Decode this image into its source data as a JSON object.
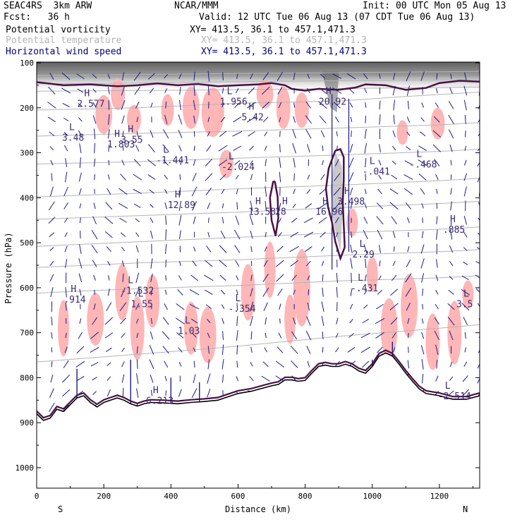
{
  "header": {
    "project": "SEAC4RS  3km ARW",
    "org": "NCAR/MMM",
    "init": "Init: 00 UTC Mon 05 Aug 13",
    "fcst": "Fcst:   36 h",
    "valid": "Valid: 12 UTC Tue 06 Aug 13 (07 CDT Tue 06 Aug 13)",
    "fields": [
      {
        "label": "Potential vorticity",
        "xy": "XY= 413.5, 36.1 to 457.1,471.3",
        "color": "#000000"
      },
      {
        "label": "Potential temperature",
        "xy": "XY= 413.5, 36.1 to 457.1,471.3",
        "color": "#b4b4b4"
      },
      {
        "label": "Horizontal wind speed",
        "xy": "XY= 413.5, 36.1 to 457.1,471.3",
        "color": "#000080"
      }
    ]
  },
  "colors": {
    "pv_shading": "#555555",
    "pink_shading": "#ffb6b6",
    "theta": "#b4b4b4",
    "vector": "#1a1a8c",
    "contour": "#4a1046",
    "terrain": "#000000",
    "hl_text": "#3a2a70"
  },
  "chart_data": {
    "type": "cross-section",
    "xlabel": "Distance (km)",
    "ylabel": "Pressure (hPa)",
    "xlim": [
      0,
      1320
    ],
    "ylim": [
      1050,
      100
    ],
    "x_ticks": [
      0,
      200,
      400,
      600,
      800,
      1000,
      1200
    ],
    "y_ticks": [
      100,
      200,
      300,
      400,
      500,
      600,
      700,
      800,
      900,
      1000
    ],
    "left_end_label": "S",
    "right_end_label": "N",
    "theta_lines": [
      [
        [
          0,
          128
        ],
        [
          300,
          126
        ],
        [
          600,
          124
        ],
        [
          900,
          122
        ],
        [
          1200,
          120
        ],
        [
          1320,
          119
        ]
      ],
      [
        [
          0,
          147
        ],
        [
          300,
          145
        ],
        [
          600,
          142
        ],
        [
          900,
          140
        ],
        [
          1200,
          138
        ],
        [
          1320,
          137
        ]
      ],
      [
        [
          0,
          163
        ],
        [
          250,
          162
        ],
        [
          600,
          160
        ],
        [
          900,
          157
        ],
        [
          1200,
          155
        ],
        [
          1320,
          154
        ]
      ],
      [
        [
          0,
          205
        ],
        [
          300,
          200
        ],
        [
          600,
          190
        ],
        [
          900,
          185
        ],
        [
          1100,
          175
        ],
        [
          1320,
          165
        ]
      ],
      [
        [
          0,
          263
        ],
        [
          300,
          257
        ],
        [
          600,
          252
        ],
        [
          900,
          245
        ],
        [
          1200,
          238
        ],
        [
          1320,
          233
        ]
      ],
      [
        [
          0,
          325
        ],
        [
          300,
          320
        ],
        [
          600,
          312
        ],
        [
          900,
          305
        ],
        [
          1200,
          297
        ],
        [
          1320,
          292
        ]
      ],
      [
        [
          0,
          398
        ],
        [
          300,
          390
        ],
        [
          600,
          380
        ],
        [
          900,
          372
        ],
        [
          1200,
          362
        ],
        [
          1320,
          357
        ]
      ],
      [
        [
          0,
          448
        ],
        [
          300,
          440
        ],
        [
          600,
          432
        ],
        [
          900,
          422
        ],
        [
          1200,
          413
        ],
        [
          1320,
          408
        ]
      ],
      [
        [
          0,
          508
        ],
        [
          300,
          498
        ],
        [
          600,
          488
        ],
        [
          900,
          478
        ],
        [
          1200,
          470
        ],
        [
          1320,
          465
        ]
      ],
      [
        [
          0,
          555
        ],
        [
          300,
          545
        ],
        [
          600,
          538
        ],
        [
          900,
          528
        ],
        [
          1200,
          520
        ],
        [
          1320,
          515
        ]
      ],
      [
        [
          0,
          612
        ],
        [
          300,
          602
        ],
        [
          600,
          595
        ],
        [
          900,
          585
        ],
        [
          1200,
          578
        ],
        [
          1320,
          573
        ]
      ],
      [
        [
          0,
          765
        ],
        [
          300,
          748
        ],
        [
          600,
          730
        ],
        [
          900,
          708
        ],
        [
          1200,
          690
        ],
        [
          1320,
          682
        ]
      ]
    ],
    "terrain": [
      [
        0,
        880
      ],
      [
        20,
        895
      ],
      [
        40,
        890
      ],
      [
        60,
        870
      ],
      [
        80,
        875
      ],
      [
        100,
        860
      ],
      [
        120,
        845
      ],
      [
        140,
        840
      ],
      [
        160,
        855
      ],
      [
        180,
        865
      ],
      [
        200,
        855
      ],
      [
        220,
        850
      ],
      [
        240,
        845
      ],
      [
        260,
        850
      ],
      [
        280,
        858
      ],
      [
        300,
        863
      ],
      [
        320,
        858
      ],
      [
        340,
        855
      ],
      [
        380,
        856
      ],
      [
        420,
        858
      ],
      [
        460,
        855
      ],
      [
        500,
        853
      ],
      [
        540,
        850
      ],
      [
        560,
        845
      ],
      [
        600,
        835
      ],
      [
        640,
        830
      ],
      [
        660,
        826
      ],
      [
        680,
        822
      ],
      [
        700,
        818
      ],
      [
        720,
        815
      ],
      [
        740,
        805
      ],
      [
        760,
        805
      ],
      [
        780,
        808
      ],
      [
        800,
        806
      ],
      [
        820,
        790
      ],
      [
        840,
        775
      ],
      [
        860,
        772
      ],
      [
        880,
        775
      ],
      [
        900,
        775
      ],
      [
        920,
        770
      ],
      [
        940,
        775
      ],
      [
        960,
        785
      ],
      [
        980,
        790
      ],
      [
        1000,
        775
      ],
      [
        1020,
        752
      ],
      [
        1040,
        745
      ],
      [
        1060,
        752
      ],
      [
        1080,
        770
      ],
      [
        1100,
        790
      ],
      [
        1120,
        808
      ],
      [
        1140,
        825
      ],
      [
        1160,
        835
      ],
      [
        1200,
        840
      ],
      [
        1240,
        848
      ],
      [
        1280,
        848
      ],
      [
        1320,
        840
      ]
    ],
    "pv_contours": [
      [
        [
          0,
          143
        ],
        [
          80,
          150
        ],
        [
          160,
          148
        ],
        [
          240,
          152
        ],
        [
          300,
          150
        ],
        [
          360,
          146
        ],
        [
          420,
          150
        ],
        [
          480,
          147
        ],
        [
          540,
          152
        ],
        [
          600,
          150
        ],
        [
          660,
          148
        ],
        [
          700,
          145
        ],
        [
          740,
          150
        ],
        [
          760,
          158
        ],
        [
          800,
          162
        ],
        [
          840,
          158
        ],
        [
          900,
          160
        ],
        [
          950,
          155
        ],
        [
          980,
          148
        ],
        [
          1040,
          150
        ],
        [
          1100,
          160
        ],
        [
          1160,
          156
        ],
        [
          1200,
          145
        ],
        [
          1260,
          140
        ],
        [
          1320,
          142
        ]
      ],
      [
        [
          890,
          295
        ],
        [
          870,
          335
        ],
        [
          862,
          380
        ],
        [
          868,
          420
        ],
        [
          880,
          455
        ],
        [
          890,
          498
        ],
        [
          905,
          535
        ],
        [
          918,
          510
        ],
        [
          915,
          460
        ],
        [
          912,
          410
        ],
        [
          915,
          360
        ],
        [
          915,
          310
        ],
        [
          905,
          292
        ],
        [
          890,
          295
        ]
      ],
      [
        [
          705,
          363
        ],
        [
          695,
          400
        ],
        [
          700,
          450
        ],
        [
          712,
          485
        ],
        [
          720,
          445
        ],
        [
          718,
          398
        ],
        [
          710,
          365
        ],
        [
          705,
          363
        ]
      ]
    ],
    "pink_regions": [
      {
        "x": 200,
        "p": 215,
        "w": 12,
        "h": 55
      },
      {
        "x": 242,
        "p": 170,
        "w": 10,
        "h": 45
      },
      {
        "x": 290,
        "p": 225,
        "w": 10,
        "h": 40
      },
      {
        "x": 390,
        "p": 205,
        "w": 9,
        "h": 45
      },
      {
        "x": 460,
        "p": 200,
        "w": 12,
        "h": 60
      },
      {
        "x": 525,
        "p": 210,
        "w": 16,
        "h": 70
      },
      {
        "x": 680,
        "p": 170,
        "w": 12,
        "h": 40
      },
      {
        "x": 735,
        "p": 200,
        "w": 10,
        "h": 60
      },
      {
        "x": 790,
        "p": 205,
        "w": 10,
        "h": 50
      },
      {
        "x": 1195,
        "p": 235,
        "w": 10,
        "h": 45
      },
      {
        "x": 1090,
        "p": 255,
        "w": 8,
        "h": 35
      },
      {
        "x": 565,
        "p": 325,
        "w": 10,
        "h": 40
      },
      {
        "x": 790,
        "p": 600,
        "w": 12,
        "h": 110
      },
      {
        "x": 630,
        "p": 610,
        "w": 10,
        "h": 80
      },
      {
        "x": 460,
        "p": 690,
        "w": 10,
        "h": 75
      },
      {
        "x": 510,
        "p": 705,
        "w": 12,
        "h": 80
      },
      {
        "x": 300,
        "p": 690,
        "w": 10,
        "h": 90
      },
      {
        "x": 255,
        "p": 610,
        "w": 10,
        "h": 80
      },
      {
        "x": 175,
        "p": 670,
        "w": 12,
        "h": 75
      },
      {
        "x": 80,
        "p": 690,
        "w": 8,
        "h": 80
      },
      {
        "x": 345,
        "p": 630,
        "w": 10,
        "h": 75
      },
      {
        "x": 695,
        "p": 560,
        "w": 8,
        "h": 80
      },
      {
        "x": 755,
        "p": 670,
        "w": 8,
        "h": 70
      },
      {
        "x": 1050,
        "p": 690,
        "w": 12,
        "h": 85
      },
      {
        "x": 1110,
        "p": 640,
        "w": 12,
        "h": 90
      },
      {
        "x": 1245,
        "p": 700,
        "w": 10,
        "h": 90
      },
      {
        "x": 1180,
        "p": 720,
        "w": 10,
        "h": 80
      },
      {
        "x": 1000,
        "p": 570,
        "w": 8,
        "h": 50
      },
      {
        "x": 940,
        "p": 455,
        "w": 8,
        "h": 40
      },
      {
        "x": 1285,
        "p": 615,
        "w": 8,
        "h": 40
      }
    ],
    "hl_labels": [
      {
        "letter": "H",
        "value": "2.577",
        "x": 150,
        "p": 195
      },
      {
        "letter": "L",
        "value": "3.48",
        "x": 105,
        "p": 270
      },
      {
        "letter": "H",
        "value": "1.803",
        "x": 240,
        "p": 285
      },
      {
        "letter": "H",
        "value": "3.55",
        "x": 280,
        "p": 275
      },
      {
        "letter": "L",
        "value": "-1.441",
        "x": 385,
        "p": 320
      },
      {
        "letter": "L",
        "value": "1.956",
        "x": 575,
        "p": 190
      },
      {
        "letter": "H",
        "value": "5.42",
        "x": 640,
        "p": 225
      },
      {
        "letter": "L",
        "value": "-2.024",
        "x": 580,
        "p": 335
      },
      {
        "letter": "H",
        "value": "12.89",
        "x": 420,
        "p": 420
      },
      {
        "letter": "H",
        "value": "13.58",
        "x": 660,
        "p": 435
      },
      {
        "letter": "H",
        "value": "28",
        "x": 740,
        "p": 435
      },
      {
        "letter": "H",
        "value": "16.96",
        "x": 860,
        "p": 435
      },
      {
        "letter": "H",
        "value": "3.498",
        "x": 925,
        "p": 412
      },
      {
        "letter": "L",
        "value": "-.041",
        "x": 1000,
        "p": 345
      },
      {
        "letter": "L",
        "value": "-.468",
        "x": 1140,
        "p": 330
      },
      {
        "letter": "H",
        "value": "20.92",
        "x": 870,
        "p": 190
      },
      {
        "letter": "L",
        "value": "2.29",
        "x": 970,
        "p": 530
      },
      {
        "letter": "L",
        "value": "-.431",
        "x": 965,
        "p": 605
      },
      {
        "letter": "H",
        "value": ".885",
        "x": 1240,
        "p": 475
      },
      {
        "letter": "H",
        "value": ".914",
        "x": 110,
        "p": 630
      },
      {
        "letter": "L",
        "value": "-1.532",
        "x": 280,
        "p": 610
      },
      {
        "letter": "L",
        "value": "1.55",
        "x": 310,
        "p": 640
      },
      {
        "letter": "L",
        "value": "1.03",
        "x": 450,
        "p": 700
      },
      {
        "letter": "L",
        "value": "-.354",
        "x": 600,
        "p": 650
      },
      {
        "letter": "L",
        "value": "3.5",
        "x": 1280,
        "p": 640
      },
      {
        "letter": "L",
        "value": "-2.514",
        "x": 1225,
        "p": 845
      },
      {
        "letter": "H",
        "value": "6.213",
        "x": 355,
        "p": 855
      }
    ]
  }
}
